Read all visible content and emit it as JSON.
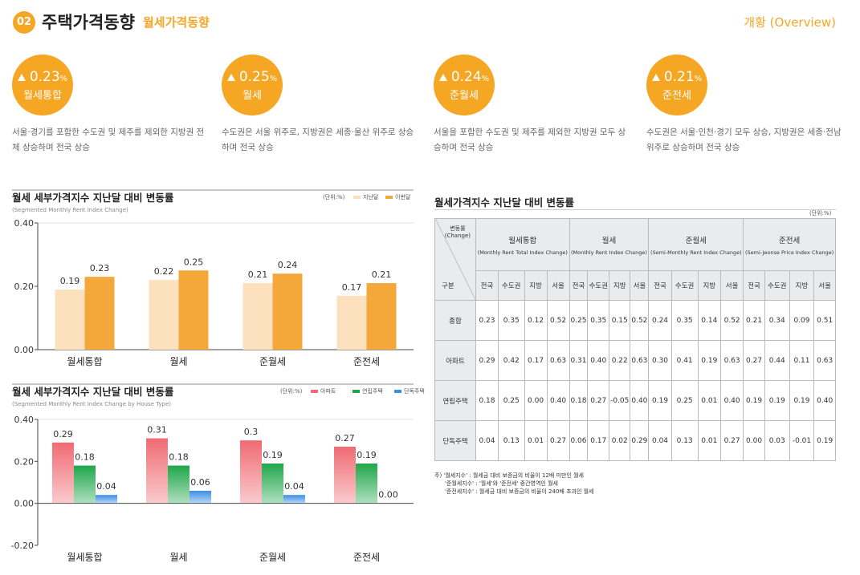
{
  "header": {
    "badge": "02",
    "title": "주택가격동향",
    "subtitle": "월세가격동향",
    "overview": "개황 (Overview)"
  },
  "summary": [
    {
      "value": 0.23,
      "unit": "%",
      "label": "월세통합",
      "description": "서울·경기를 포함한 수도권 및 제주를 제외한 지방권 전체 상승하며 전국 상승"
    },
    {
      "value": 0.25,
      "unit": "%",
      "label": "월세",
      "description": "수도권은 서울 위주로, 지방권은 세종·울산 위주로 상승하며 전국 상승"
    },
    {
      "value": 0.24,
      "unit": "%",
      "label": "준월세",
      "description": "서울을 포함한 수도권 및 제주를 제외한 지방권 모두 상승하며 전국 상승"
    },
    {
      "value": 0.21,
      "unit": "%",
      "label": "준전세",
      "description": "수도권은 서울·인천·경기 모두 상승, 지방권은 세종·전남 위주로 상승하며 전국 상승"
    }
  ],
  "chart_data": [
    {
      "type": "bar",
      "title": "월세 세부가격지수 지난달 대비 변동률",
      "subtitle": "(Segmented Monthly Rent Index Change)",
      "unit": "(단위:%)",
      "categories": [
        "월세통합",
        "월세",
        "준월세",
        "준전세"
      ],
      "series": [
        {
          "name": "지난달",
          "color": "#fde0bd",
          "values": [
            0.19,
            0.22,
            0.21,
            0.17
          ]
        },
        {
          "name": "이번달",
          "color": "#f4a83a",
          "values": [
            0.23,
            0.25,
            0.24,
            0.21
          ]
        }
      ],
      "ylim": [
        0,
        0.4
      ],
      "yticks": [
        {
          "value": 0,
          "label": "0.00"
        },
        {
          "value": 0.2,
          "label": "0.20"
        },
        {
          "value": 0.4,
          "label": "0.40"
        }
      ]
    },
    {
      "type": "bar",
      "title": "월세 세부가격지수 지난달 대비 변동률",
      "subtitle": "(Segmented Monthly Rent Index Change by House Type)",
      "unit": "(단위:%)",
      "categories": [
        "월세통합",
        "월세",
        "준월세",
        "준전세"
      ],
      "series": [
        {
          "name": "아파트",
          "color": "#f06b73",
          "values": [
            0.29,
            0.31,
            0.3,
            0.27
          ]
        },
        {
          "name": "연립주택",
          "color": "#1fa64a",
          "values": [
            0.18,
            0.18,
            0.19,
            0.19
          ]
        },
        {
          "name": "단독주택",
          "color": "#3b8ee6",
          "values": [
            0.04,
            0.06,
            0.04,
            0
          ],
          "value_labels": [
            "0.04",
            "0.06",
            "0.04",
            "0.00"
          ]
        }
      ],
      "ylim": [
        -0.2,
        0.4
      ],
      "yticks": [
        {
          "value": -0.2,
          "label": "-0.20"
        },
        {
          "value": 0,
          "label": "0.00"
        },
        {
          "value": 0.2,
          "label": "0.20"
        },
        {
          "value": 0.4,
          "label": "0.40"
        }
      ]
    }
  ],
  "table": {
    "title": "월세가격지수 지난달 대비 변동률",
    "unit": "(단위:%)",
    "corner_top": "변동률",
    "corner_top_en": "(Change)",
    "corner_bottom": "구분",
    "groups": [
      {
        "name": "월세통합",
        "name_en": "(Monthly Rent Total Index Change)",
        "columns": [
          "전국",
          "수도권",
          "지방",
          "서울"
        ]
      },
      {
        "name": "월세",
        "name_en": "(Monthly Rent Index Change)",
        "columns": [
          "전국",
          "수도권",
          "지방",
          "서울"
        ]
      },
      {
        "name": "준월세",
        "name_en": "(Semi-Monthly Rent Index Change)",
        "columns": [
          "전국",
          "수도권",
          "지방",
          "서울"
        ]
      },
      {
        "name": "준전세",
        "name_en": "(Semi-Jeonse Price Index Change)",
        "columns": [
          "전국",
          "수도권",
          "지방",
          "서울"
        ]
      }
    ],
    "rows": [
      {
        "label": "종합",
        "values": [
          "0.23",
          "0.35",
          "0.12",
          "0.52",
          "0.25",
          "0.35",
          "0.15",
          "0.52",
          "0.24",
          "0.35",
          "0.14",
          "0.52",
          "0.21",
          "0.34",
          "0.09",
          "0.51"
        ]
      },
      {
        "label": "아파트",
        "values": [
          "0.29",
          "0.42",
          "0.17",
          "0.63",
          "0.31",
          "0.40",
          "0.22",
          "0.63",
          "0.30",
          "0.41",
          "0.19",
          "0.63",
          "0.27",
          "0.44",
          "0.11",
          "0.63"
        ]
      },
      {
        "label": "연립주택",
        "values": [
          "0.18",
          "0.25",
          "0.00",
          "0.40",
          "0.18",
          "0.27",
          "-0.05",
          "0.40",
          "0.19",
          "0.25",
          "0.01",
          "0.40",
          "0.19",
          "0.19",
          "0.19",
          "0.40"
        ]
      },
      {
        "label": "단독주택",
        "values": [
          "0.04",
          "0.13",
          "0.01",
          "0.27",
          "0.06",
          "0.17",
          "0.02",
          "0.29",
          "0.04",
          "0.13",
          "0.01",
          "0.27",
          "0.00",
          "0.03",
          "-0.01",
          "0.19"
        ]
      }
    ]
  },
  "notes": [
    "주) '월세지수' : 월세금 대비 보증금의 비율이 12배 미만인 월세",
    "'준월세지수' : '월세'와 '준전세' 중간영역인 월세",
    "'준전세지수' : 월세금 대비 보증금의 비율이 240배 초과인 월세"
  ]
}
